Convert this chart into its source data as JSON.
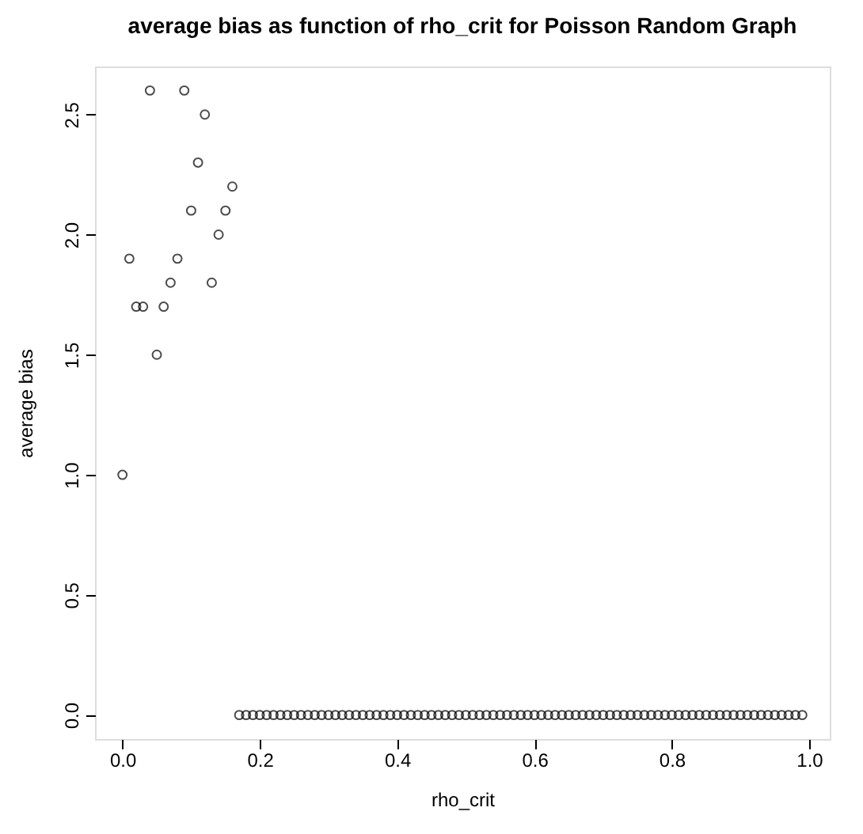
{
  "chart_data": {
    "type": "scatter",
    "title": "average bias as function of rho_crit for Poisson Random Graph",
    "xlabel": "rho_crit",
    "ylabel": "average bias",
    "x": [
      0,
      0.01,
      0.02,
      0.03,
      0.04,
      0.05,
      0.06,
      0.07,
      0.08,
      0.09,
      0.1,
      0.11,
      0.12,
      0.13,
      0.14,
      0.15,
      0.16,
      0.17,
      0.18,
      0.19,
      0.2,
      0.21,
      0.22,
      0.23,
      0.24,
      0.25,
      0.26,
      0.27,
      0.28,
      0.29,
      0.3,
      0.31,
      0.32,
      0.33,
      0.34,
      0.35,
      0.36,
      0.37,
      0.38,
      0.39,
      0.4,
      0.41,
      0.42,
      0.43,
      0.44,
      0.45,
      0.46,
      0.47,
      0.48,
      0.49,
      0.5,
      0.51,
      0.52,
      0.53,
      0.54,
      0.55,
      0.56,
      0.57,
      0.58,
      0.59,
      0.6,
      0.61,
      0.62,
      0.63,
      0.64,
      0.65,
      0.66,
      0.67,
      0.68,
      0.69,
      0.7,
      0.71,
      0.72,
      0.73,
      0.74,
      0.75,
      0.76,
      0.77,
      0.78,
      0.79,
      0.8,
      0.81,
      0.82,
      0.83,
      0.84,
      0.85,
      0.86,
      0.87,
      0.88,
      0.89,
      0.9,
      0.91,
      0.92,
      0.93,
      0.94,
      0.95,
      0.96,
      0.97,
      0.98,
      0.99
    ],
    "series": [
      {
        "color": "#000000",
        "values": [
          1.0,
          1.9,
          1.7,
          1.7,
          2.6,
          1.5,
          1.7,
          1.8,
          1.9,
          2.6,
          2.1,
          2.3,
          2.5,
          1.8,
          2.0,
          2.1,
          2.2,
          0,
          0,
          0,
          0,
          0,
          0,
          0,
          0,
          0,
          0,
          0,
          0,
          0,
          0,
          0,
          0,
          0,
          0,
          0,
          0,
          0,
          0,
          0,
          0,
          0,
          0,
          0,
          0,
          0,
          0,
          0,
          0,
          0,
          0,
          0,
          0,
          0,
          0,
          0,
          0,
          0,
          0,
          0,
          0,
          0,
          0,
          0,
          0,
          0,
          0,
          0,
          0,
          0,
          0,
          0,
          0,
          0,
          0,
          0,
          0,
          0,
          0,
          0,
          0,
          0,
          0,
          0,
          0,
          0,
          0,
          0,
          0,
          0,
          0,
          0,
          0,
          0,
          0,
          0,
          0,
          0,
          0,
          0
        ]
      }
    ],
    "xlim": [
      -0.04,
      1.03
    ],
    "ylim": [
      -0.1,
      2.7
    ],
    "xticks": [
      {
        "value": 0,
        "label": "0.0"
      },
      {
        "value": 0.2,
        "label": "0.2"
      },
      {
        "value": 0.4,
        "label": "0.4"
      },
      {
        "value": 0.6,
        "label": "0.6"
      },
      {
        "value": 0.8,
        "label": "0.8"
      },
      {
        "value": 1,
        "label": "1.0"
      }
    ],
    "yticks": [
      {
        "value": 0,
        "label": "0.0"
      },
      {
        "value": 0.5,
        "label": "0.5"
      },
      {
        "value": 1,
        "label": "1.0"
      },
      {
        "value": 1.5,
        "label": "1.5"
      },
      {
        "value": 2,
        "label": "2.0"
      },
      {
        "value": 2.5,
        "label": "2.5"
      }
    ],
    "marker": "circle",
    "grid": false
  }
}
